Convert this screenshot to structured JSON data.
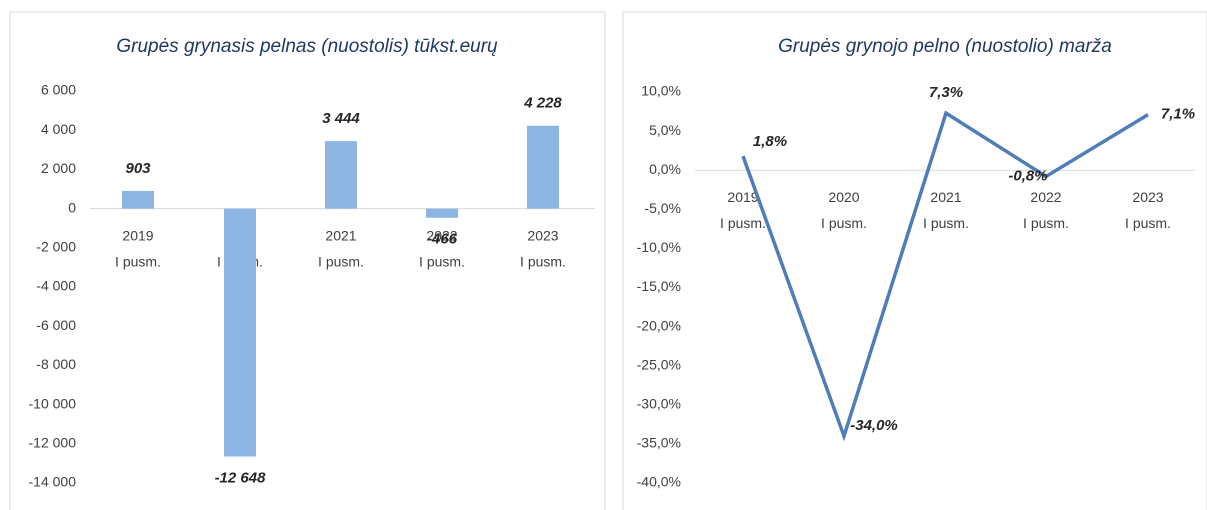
{
  "chart_data": [
    {
      "type": "bar",
      "title": "Grupės grynasis pelnas (nuostolis) tūkst.eurų",
      "categories": [
        [
          "2019",
          "I pusm."
        ],
        [
          "2020",
          "I pusm."
        ],
        [
          "2021",
          "I pusm."
        ],
        [
          "2022",
          "I pusm."
        ],
        [
          "2023",
          "I pusm."
        ]
      ],
      "values": [
        903,
        -12648,
        3444,
        -466,
        4228
      ],
      "value_labels": [
        "903",
        "-12 648",
        "3 444",
        "-466",
        "4 228"
      ],
      "color": "#8eb4e3",
      "ylim": [
        -14000,
        6000
      ],
      "yticks": [
        {
          "value": 6000,
          "label": "6 000"
        },
        {
          "value": 4000,
          "label": "4 000"
        },
        {
          "value": 2000,
          "label": "2 000"
        },
        0,
        {
          "value": -2000,
          "label": "-2 000"
        },
        {
          "value": -4000,
          "label": "-4 000"
        },
        {
          "value": -6000,
          "label": "-6 000"
        },
        {
          "value": -8000,
          "label": "-8 000"
        },
        {
          "value": -10000,
          "label": "-10 000"
        },
        {
          "value": -12000,
          "label": "-12 000"
        },
        {
          "value": -14000,
          "label": "-14 000"
        }
      ]
    },
    {
      "type": "line",
      "title": "Grupės grynojo pelno (nuostolio) marža",
      "categories": [
        [
          "2019",
          "I pusm."
        ],
        [
          "2020",
          "I pusm."
        ],
        [
          "2021",
          "I pusm."
        ],
        [
          "2022",
          "I pusm."
        ],
        [
          "2023",
          "I pusm."
        ]
      ],
      "values": [
        1.8,
        -34.0,
        7.3,
        -0.8,
        7.1
      ],
      "value_labels": [
        "1,8%",
        "-34,0%",
        "7,3%",
        "-0,8%",
        "7,1%"
      ],
      "color": "#4f7db8",
      "ylim": [
        -40,
        10
      ],
      "yticks": [
        {
          "value": 10,
          "label": "10,0%"
        },
        {
          "value": 5,
          "label": "5,0%"
        },
        {
          "value": 0,
          "label": "0,0%"
        },
        {
          "value": -5,
          "label": "-5,0%"
        },
        {
          "value": -10,
          "label": "-10,0%"
        },
        {
          "value": -15,
          "label": "-15,0%"
        },
        {
          "value": -20,
          "label": "-20,0%"
        },
        {
          "value": -25,
          "label": "-25,0%"
        },
        {
          "value": -30,
          "label": "-30,0%"
        },
        {
          "value": -35,
          "label": "-35,0%"
        },
        {
          "value": -40,
          "label": "-40,0%"
        }
      ]
    }
  ]
}
